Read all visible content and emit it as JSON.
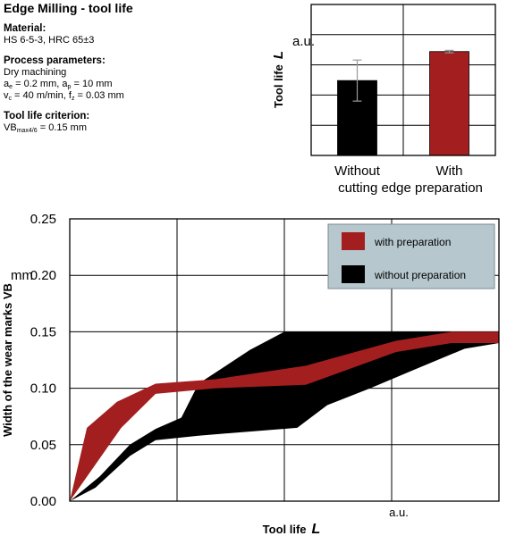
{
  "info": {
    "title": "Edge Milling - tool life",
    "material_heading": "Material:",
    "material_value": "HS 6-5-3, HRC 65±3",
    "process_heading": "Process parameters:",
    "process_dry": "Dry machining",
    "ae_value": "0.2 mm",
    "ap_value": "10 mm",
    "vc_value": "40 m/min",
    "fz_value": "0.03 mm",
    "criterion_heading": "Tool life criterion:",
    "criterion_value": "0.15 mm"
  },
  "chart_data": [
    {
      "type": "bar",
      "categories": [
        "Without",
        "With"
      ],
      "category_caption": "cutting edge preparation",
      "values": [
        0.62,
        0.86
      ],
      "error": [
        0.17,
        0.01
      ],
      "colors": [
        "#000000",
        "#a31e1e"
      ],
      "ylabel": "Tool life",
      "ylabel_symbol": "L",
      "yunit": "a.u.",
      "ylim": [
        0,
        1.25
      ],
      "grid": true
    },
    {
      "type": "area",
      "ylabel": "Width of the wear marks VB",
      "yunit": "mm",
      "xlabel": "Tool life",
      "xlabel_symbol": "L",
      "xunit": "a.u.",
      "ylim": [
        0,
        0.25
      ],
      "xlim": [
        0,
        1
      ],
      "yticks": [
        "0.00",
        "0.05",
        "0.10",
        "0.15",
        "0.20",
        "0.25"
      ],
      "grid": true,
      "legend_position": "top-right",
      "series": [
        {
          "name": "without preparation",
          "color": "#000000",
          "upper": [
            [
              0,
              0
            ],
            [
              0.07,
              0.022
            ],
            [
              0.14,
              0.05
            ],
            [
              0.2,
              0.064
            ],
            [
              0.26,
              0.074
            ],
            [
              0.3,
              0.104
            ],
            [
              0.42,
              0.134
            ],
            [
              0.5,
              0.15
            ],
            [
              1,
              0.15
            ]
          ],
          "lower": [
            [
              0,
              0
            ],
            [
              0.06,
              0.012
            ],
            [
              0.14,
              0.04
            ],
            [
              0.2,
              0.054
            ],
            [
              0.3,
              0.058
            ],
            [
              0.53,
              0.065
            ],
            [
              0.6,
              0.085
            ],
            [
              0.7,
              0.1
            ],
            [
              0.8,
              0.116
            ],
            [
              0.92,
              0.135
            ],
            [
              1,
              0.14
            ]
          ]
        },
        {
          "name": "with preparation",
          "color": "#a31e1e",
          "upper": [
            [
              0,
              0
            ],
            [
              0.04,
              0.065
            ],
            [
              0.11,
              0.088
            ],
            [
              0.2,
              0.104
            ],
            [
              0.34,
              0.108
            ],
            [
              0.55,
              0.12
            ],
            [
              0.76,
              0.142
            ],
            [
              0.89,
              0.15
            ],
            [
              1,
              0.15
            ]
          ],
          "lower": [
            [
              0,
              0
            ],
            [
              0.12,
              0.065
            ],
            [
              0.2,
              0.095
            ],
            [
              0.34,
              0.1
            ],
            [
              0.55,
              0.103
            ],
            [
              0.76,
              0.132
            ],
            [
              0.89,
              0.14
            ],
            [
              1,
              0.14
            ]
          ]
        }
      ]
    }
  ]
}
